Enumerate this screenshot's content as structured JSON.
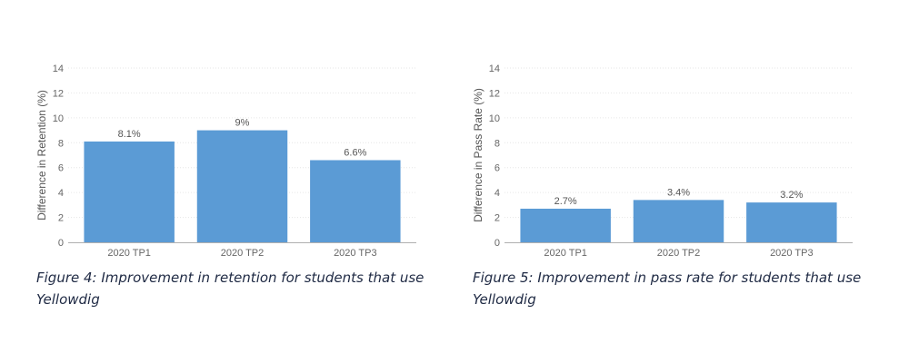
{
  "figures": [
    {
      "caption": "Figure 4: Improvement in retention for students that use Yellowdig",
      "chart_data": {
        "type": "bar",
        "title": "",
        "categories": [
          "2020 TP1",
          "2020 TP2",
          "2020 TP3"
        ],
        "values": [
          8.1,
          9,
          6.6
        ],
        "data_labels": [
          "8.1%",
          "9%",
          "6.6%"
        ],
        "ylabel": "Difference in Retention (%)",
        "xlabel": "",
        "ylim": [
          0,
          14
        ],
        "yticks": [
          0,
          2,
          4,
          6,
          8,
          10,
          12,
          14
        ],
        "grid": true,
        "bar_color": "#5b9bd5"
      }
    },
    {
      "caption": "Figure 5: Improvement in pass rate for students that use Yellowdig",
      "chart_data": {
        "type": "bar",
        "title": "",
        "categories": [
          "2020 TP1",
          "2020 TP2",
          "2020 TP3"
        ],
        "values": [
          2.7,
          3.4,
          3.2
        ],
        "data_labels": [
          "2.7%",
          "3.4%",
          "3.2%"
        ],
        "ylabel": "Difference in Pass Rate (%)",
        "xlabel": "",
        "ylim": [
          0,
          14
        ],
        "yticks": [
          0,
          2,
          4,
          6,
          8,
          10,
          12,
          14
        ],
        "grid": true,
        "bar_color": "#5b9bd5"
      }
    }
  ]
}
